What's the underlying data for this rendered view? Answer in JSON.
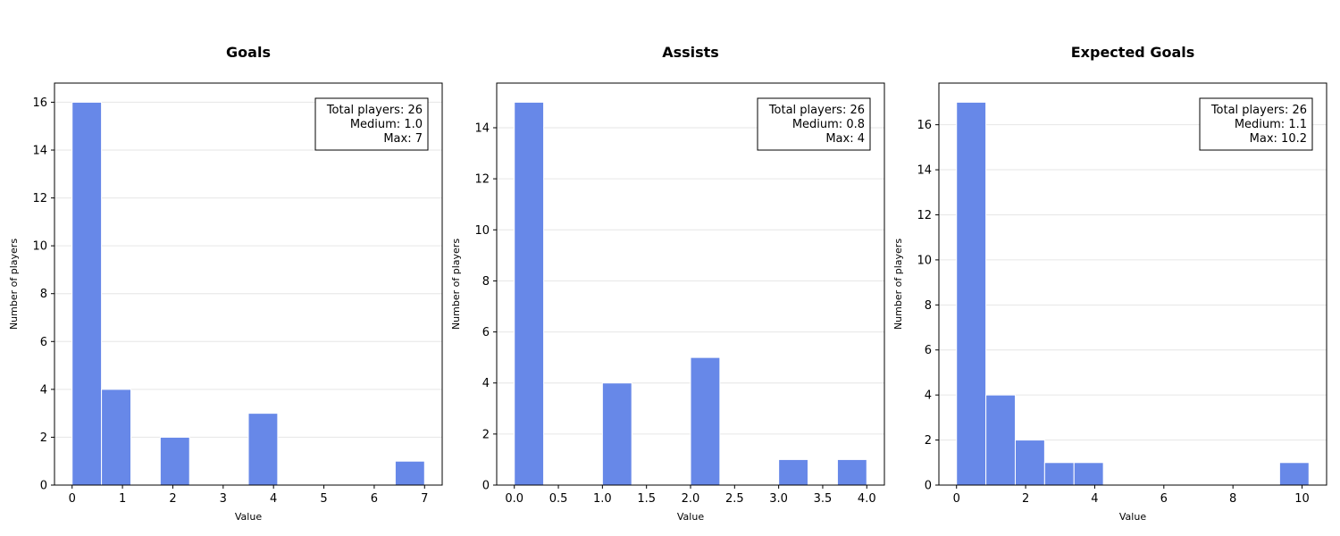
{
  "style": {
    "bar_color": "#6788e8",
    "bar_edge": "#ffffff",
    "grid_color": "#e6e6e6"
  },
  "chart_data": [
    {
      "type": "bar",
      "title": "Goals",
      "xlabel": "Value",
      "ylabel": "Number of players",
      "xlim": [
        -0.35,
        7.35
      ],
      "ylim": [
        0,
        16.8
      ],
      "xticks": [
        0,
        1,
        2,
        3,
        4,
        5,
        6,
        7
      ],
      "yticks": [
        0,
        2,
        4,
        6,
        8,
        10,
        12,
        14,
        16
      ],
      "bins": [
        {
          "x0": 0.0,
          "x1": 0.583,
          "count": 16
        },
        {
          "x0": 0.583,
          "x1": 1.167,
          "count": 4
        },
        {
          "x0": 1.75,
          "x1": 2.333,
          "count": 2
        },
        {
          "x0": 3.5,
          "x1": 4.083,
          "count": 3
        },
        {
          "x0": 6.417,
          "x1": 7.0,
          "count": 1
        }
      ],
      "stats": [
        "Total players: 26",
        "Medium: 1.0",
        "Max: 7"
      ],
      "legend_placement": "top-right",
      "grid": "y"
    },
    {
      "type": "bar",
      "title": "Assists",
      "xlabel": "Value",
      "ylabel": "Number of players",
      "xlim": [
        -0.2,
        4.2
      ],
      "ylim": [
        0,
        15.75
      ],
      "xticks": [
        0.0,
        0.5,
        1.0,
        1.5,
        2.0,
        2.5,
        3.0,
        3.5,
        4.0
      ],
      "yticks": [
        0,
        2,
        4,
        6,
        8,
        10,
        12,
        14
      ],
      "bins": [
        {
          "x0": 0.0,
          "x1": 0.333,
          "count": 15
        },
        {
          "x0": 1.0,
          "x1": 1.333,
          "count": 4
        },
        {
          "x0": 2.0,
          "x1": 2.333,
          "count": 5
        },
        {
          "x0": 3.0,
          "x1": 3.333,
          "count": 1
        },
        {
          "x0": 3.667,
          "x1": 4.0,
          "count": 1
        }
      ],
      "stats": [
        "Total players: 26",
        "Medium: 0.8",
        "Max: 4"
      ],
      "legend_placement": "top-right",
      "grid": "y"
    },
    {
      "type": "bar",
      "title": "Expected Goals",
      "xlabel": "Value",
      "ylabel": "Number of players",
      "xlim": [
        -0.51,
        10.71
      ],
      "ylim": [
        0,
        17.85
      ],
      "xticks": [
        0,
        2,
        4,
        6,
        8,
        10
      ],
      "yticks": [
        0,
        2,
        4,
        6,
        8,
        10,
        12,
        14,
        16
      ],
      "bins": [
        {
          "x0": 0.0,
          "x1": 0.85,
          "count": 17
        },
        {
          "x0": 0.85,
          "x1": 1.7,
          "count": 4
        },
        {
          "x0": 1.7,
          "x1": 2.55,
          "count": 2
        },
        {
          "x0": 2.55,
          "x1": 3.4,
          "count": 1
        },
        {
          "x0": 3.4,
          "x1": 4.25,
          "count": 1
        },
        {
          "x0": 9.35,
          "x1": 10.2,
          "count": 1
        }
      ],
      "stats": [
        "Total players: 26",
        "Medium: 1.1",
        "Max: 10.2"
      ],
      "legend_placement": "top-right",
      "grid": "y"
    }
  ]
}
